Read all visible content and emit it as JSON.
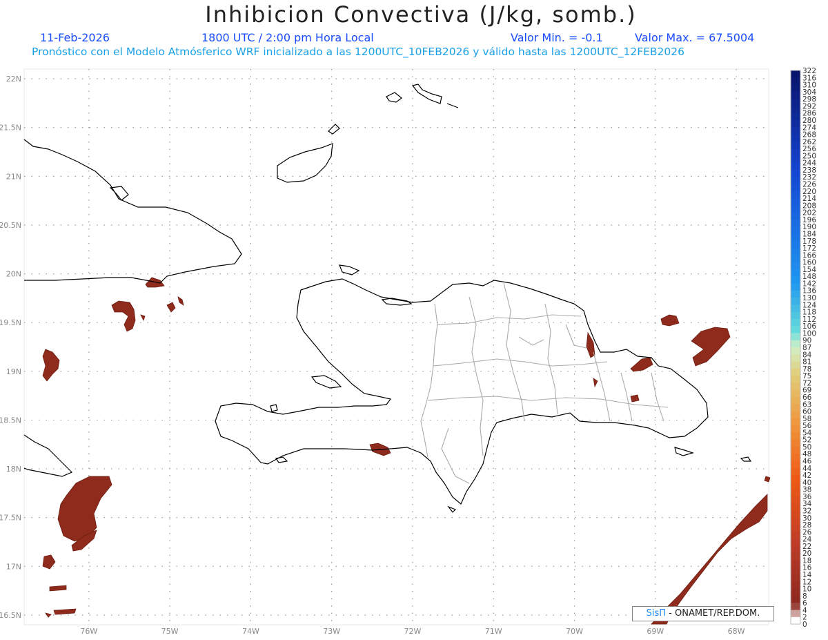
{
  "header": {
    "title": "Inhibicion Convectiva (J/kg, somb.)",
    "date": "11-Feb-2026",
    "time": "1800 UTC / 2:00 pm Hora Local",
    "vmin": "Valor Min. = -0.1",
    "vmax": "Valor Max. = 67.5004",
    "subtitle": "Pronóstico con el Modelo Atmósferico WRF inicializado a las 1200UTC_10FEB2026 y válido hasta las  1200UTC_12FEB2026"
  },
  "credit": {
    "brand": "SisΠ",
    "text": " - ONAMET/REP.DOM."
  },
  "map": {
    "lon_range": [
      -76.8,
      -67.6
    ],
    "lat_range": [
      16.4,
      22.1
    ],
    "lat_ticks": [
      "22N",
      "21.5N",
      "21N",
      "20.5N",
      "20N",
      "19.5N",
      "19N",
      "18.5N",
      "18N",
      "17.5N",
      "17N",
      "16.5N"
    ],
    "lon_ticks": [
      "76W",
      "75W",
      "74W",
      "73W",
      "72W",
      "71W",
      "70W",
      "69W",
      "68W"
    ],
    "coast_color": "#000000",
    "province_color": "#aaaaaa",
    "fill_color": "#8e2b1c"
  },
  "colorbar": {
    "labels": [
      "322",
      "316",
      "310",
      "304",
      "298",
      "292",
      "286",
      "280",
      "274",
      "268",
      "262",
      "256",
      "250",
      "244",
      "238",
      "232",
      "226",
      "220",
      "214",
      "208",
      "202",
      "196",
      "190",
      "184",
      "178",
      "172",
      "166",
      "160",
      "154",
      "148",
      "142",
      "136",
      "130",
      "124",
      "118",
      "112",
      "106",
      "100",
      "90",
      "87",
      "84",
      "81",
      "78",
      "75",
      "72",
      "69",
      "66",
      "63",
      "60",
      "58",
      "56",
      "54",
      "52",
      "50",
      "48",
      "46",
      "44",
      "42",
      "40",
      "38",
      "36",
      "34",
      "32",
      "30",
      "28",
      "26",
      "24",
      "22",
      "20",
      "18",
      "16",
      "14",
      "12",
      "10",
      "8",
      "6",
      "4",
      "2",
      "0"
    ]
  }
}
